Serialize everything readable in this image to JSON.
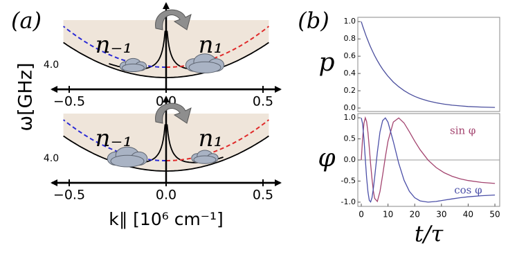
{
  "chart_data": [
    {
      "type": "dispersion",
      "panel_label": "(a)",
      "ylabel": "ω[GHz]",
      "level_label": "4.0",
      "annotations": [
        "n₋₁",
        "n₁"
      ],
      "xlim": [
        -0.6,
        0.6
      ],
      "xticks": [
        {
          "value": -0.5,
          "label": "−0.5"
        },
        {
          "value": 0,
          "label": "0.0"
        },
        {
          "value": 0.5,
          "label": "0.5"
        }
      ]
    },
    {
      "type": "dispersion",
      "xlabel": "k∥ [10⁶ cm⁻¹]",
      "level_label": "4.0",
      "annotations": [
        "n₋₁",
        "n₁"
      ],
      "xlim": [
        -0.6,
        0.6
      ],
      "xticks": [
        {
          "value": -0.5,
          "label": "−0.5"
        },
        {
          "value": 0,
          "label": "0.0"
        },
        {
          "value": 0.5,
          "label": "0.5"
        }
      ]
    },
    {
      "type": "line",
      "panel_label": "(b)",
      "ylabel": "p",
      "color": "#4b4f9e",
      "x": [
        0,
        0.5,
        1,
        1.5,
        2,
        2.5,
        3,
        3.5,
        4,
        4.5,
        5,
        6,
        7,
        8,
        9,
        10,
        12,
        14,
        16,
        18,
        20,
        22,
        25,
        28,
        31,
        34,
        37,
        40,
        45,
        50
      ],
      "values": [
        1,
        0.951,
        0.905,
        0.861,
        0.819,
        0.779,
        0.741,
        0.705,
        0.67,
        0.638,
        0.607,
        0.549,
        0.497,
        0.449,
        0.407,
        0.368,
        0.301,
        0.247,
        0.202,
        0.165,
        0.135,
        0.111,
        0.082,
        0.061,
        0.045,
        0.033,
        0.025,
        0.018,
        0.011,
        0.007
      ],
      "xlim": [
        -1.3,
        51.8
      ],
      "ylim": [
        -0.04,
        1.05
      ],
      "yticks": [
        {
          "value": 0,
          "label": "0.0"
        },
        {
          "value": 0.2,
          "label": "0.2"
        },
        {
          "value": 0.4,
          "label": "0.4"
        },
        {
          "value": 0.6,
          "label": "0.6"
        },
        {
          "value": 0.8,
          "label": "0.8"
        },
        {
          "value": 1,
          "label": "1.0"
        }
      ]
    },
    {
      "type": "line",
      "ylabel": "φ",
      "xlabel": "t/τ",
      "zero_line": true,
      "x": [
        0,
        0.5,
        1,
        1.5,
        2,
        2.5,
        3,
        3.5,
        4,
        4.5,
        5,
        6,
        7,
        8,
        9,
        10,
        12,
        14,
        16,
        18,
        20,
        22,
        25,
        28,
        31,
        34,
        37,
        40,
        45,
        50
      ],
      "series": [
        {
          "name": "sin φ",
          "color": "#a3446f",
          "values": [
            0,
            0.517,
            0.871,
            1,
            0.908,
            0.646,
            0.288,
            -0.097,
            -0.449,
            -0.727,
            -0.91,
            -0.984,
            -0.75,
            -0.354,
            0.072,
            0.445,
            0.9,
            0.997,
            0.877,
            0.668,
            0.446,
            0.243,
            -0.003,
            -0.179,
            -0.302,
            -0.388,
            -0.447,
            -0.488,
            -0.532,
            -0.556
          ]
        },
        {
          "name": "cos φ",
          "color": "#4b4fa8",
          "values": [
            1,
            0.856,
            0.491,
            0.028,
            -0.419,
            -0.763,
            -0.958,
            -0.995,
            -0.894,
            -0.687,
            -0.415,
            0.179,
            0.661,
            0.935,
            0.997,
            0.896,
            0.436,
            -0.077,
            -0.48,
            -0.744,
            -0.895,
            -0.97,
            -1,
            -0.984,
            -0.953,
            -0.922,
            -0.895,
            -0.873,
            -0.847,
            -0.831
          ]
        }
      ],
      "xlim": [
        -1.3,
        51.8
      ],
      "ylim": [
        -1.1,
        1.1
      ],
      "xticks": [
        0,
        10,
        20,
        30,
        40,
        50
      ],
      "yticks": [
        {
          "value": -1,
          "label": "-1.0"
        },
        {
          "value": -0.5,
          "label": "-0.5"
        },
        {
          "value": 0,
          "label": "0.0"
        },
        {
          "value": 0.5,
          "label": "0.5"
        },
        {
          "value": 1,
          "label": "1.0"
        }
      ]
    }
  ]
}
